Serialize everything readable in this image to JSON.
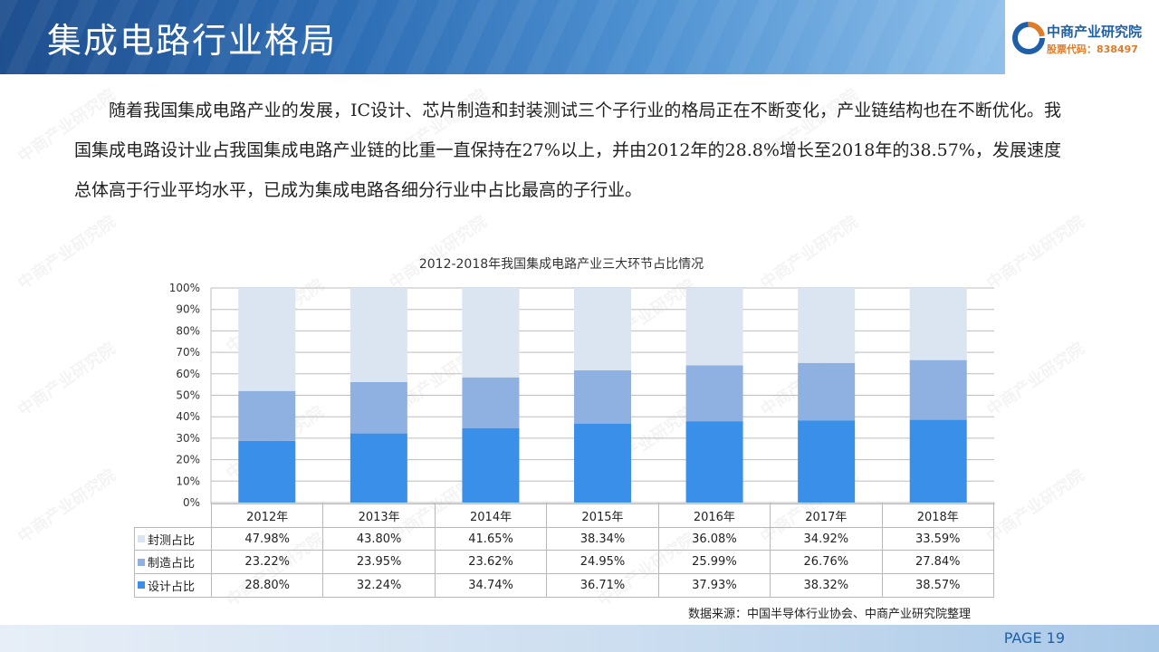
{
  "header": {
    "title": "集成电路行业格局",
    "logo_name": "中商产业研究院",
    "logo_code": "股票代码：838497"
  },
  "paragraph": "随着我国集成电路产业的发展，IC设计、芯片制造和封装测试三个子行业的格局正在不断变化，产业链结构也在不断优化。我国集成电路设计业占我国集成电路产业链的比重一直保持在27%以上，并由2012年的28.8%增长至2018年的38.57%，发展速度总体高于行业平均水平，已成为集成电路各细分行业中占比最高的子行业。",
  "chart_data": {
    "type": "bar",
    "stacked": true,
    "title": "2012-2018年我国集成电路产业三大环节占比情况",
    "categories": [
      "2012年",
      "2013年",
      "2014年",
      "2015年",
      "2016年",
      "2017年",
      "2018年"
    ],
    "yticks": [
      "0%",
      "10%",
      "20%",
      "30%",
      "40%",
      "50%",
      "60%",
      "70%",
      "80%",
      "90%",
      "100%"
    ],
    "ylim": [
      0,
      100
    ],
    "grid": true,
    "series": [
      {
        "name": "设计占比",
        "color": "#3a8fe8",
        "values": [
          28.8,
          32.24,
          34.74,
          36.71,
          37.93,
          38.32,
          38.57
        ],
        "labels": [
          "28.80%",
          "32.24%",
          "34.74%",
          "36.71%",
          "37.93%",
          "38.32%",
          "38.57%"
        ]
      },
      {
        "name": "制造占比",
        "color": "#8fb1e2",
        "values": [
          23.22,
          23.95,
          23.62,
          24.95,
          25.99,
          26.76,
          27.84
        ],
        "labels": [
          "23.22%",
          "23.95%",
          "23.62%",
          "24.95%",
          "25.99%",
          "26.76%",
          "27.84%"
        ]
      },
      {
        "name": "封测占比",
        "color": "#dbe5f2",
        "values": [
          47.98,
          43.8,
          41.65,
          38.34,
          36.08,
          34.92,
          33.59
        ],
        "labels": [
          "47.98%",
          "43.80%",
          "41.65%",
          "38.34%",
          "36.08%",
          "34.92%",
          "33.59%"
        ]
      }
    ],
    "table_row_order": [
      "封测占比",
      "制造占比",
      "设计占比"
    ]
  },
  "source": "数据来源：中国半导体行业协会、中商产业研究院整理",
  "page": "PAGE 19"
}
